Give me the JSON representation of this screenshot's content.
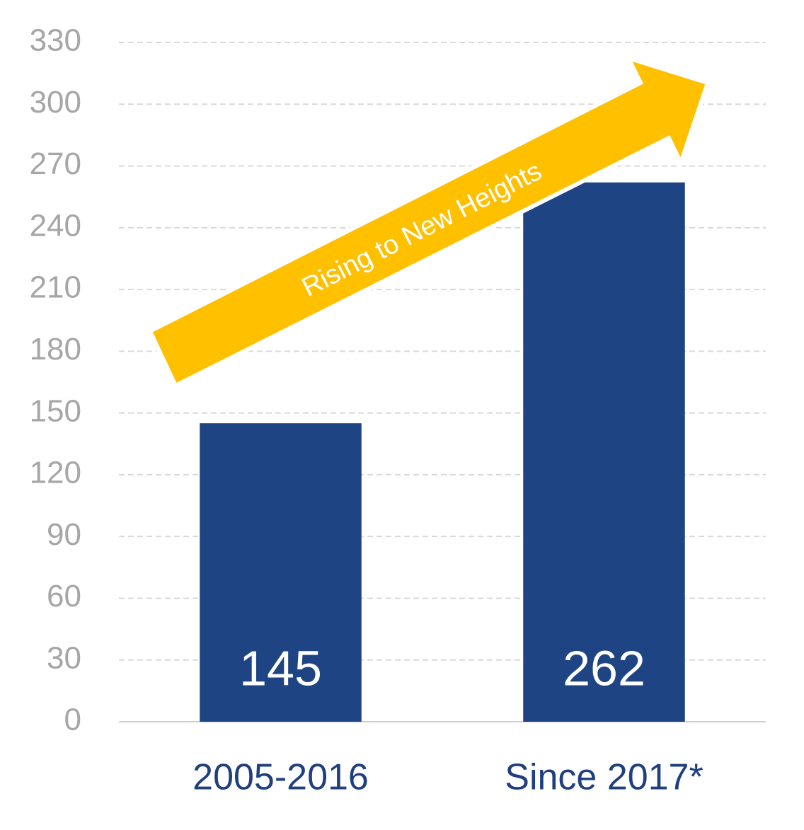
{
  "chart_data": {
    "type": "bar",
    "categories": [
      "2005-2016",
      "Since 2017*"
    ],
    "values": [
      145,
      262
    ],
    "color": "#1f4483",
    "ylim": [
      0,
      330
    ],
    "yticks": [
      0,
      30,
      60,
      90,
      120,
      150,
      180,
      210,
      240,
      270,
      300,
      330
    ],
    "grid": true,
    "annotation": "Rising to New Heights"
  }
}
